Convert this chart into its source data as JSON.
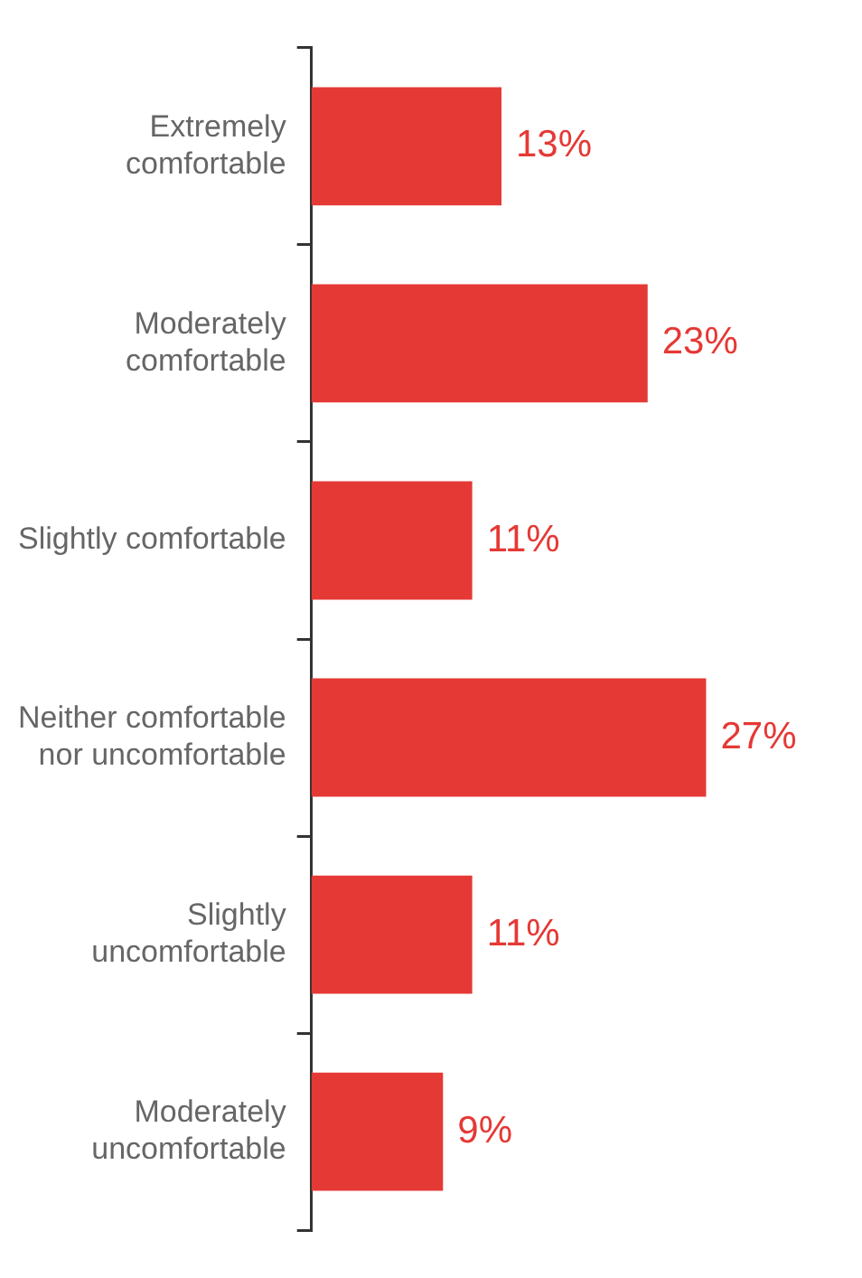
{
  "chart_data": {
    "type": "bar",
    "orientation": "horizontal",
    "categories": [
      "Extremely comfortable",
      "Moderately comfortable",
      "Slightly comfortable",
      "Neither comfortable nor uncomfortable",
      "Slightly uncomfortable",
      "Moderately uncomfortable"
    ],
    "values": [
      13,
      23,
      11,
      27,
      11,
      9
    ],
    "color": "#e53935",
    "data_labels": true,
    "value_labels": [
      "13%",
      "23%",
      "11%",
      "27%",
      "11%",
      "9%"
    ]
  }
}
